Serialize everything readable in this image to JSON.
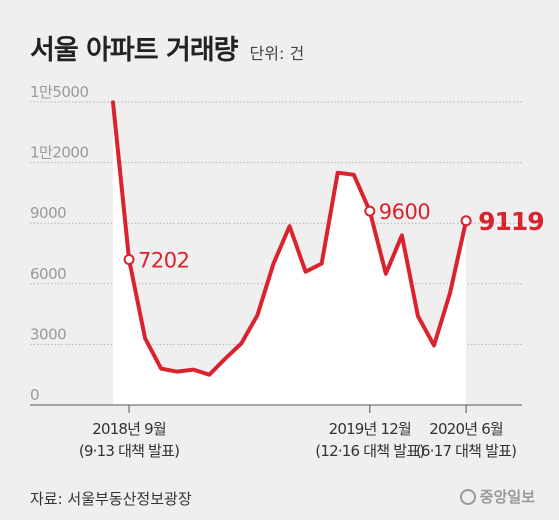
{
  "header": {
    "title": "서울 아파트 거래량",
    "unit": "단위: 건"
  },
  "source": "자료: 서울부동산정보광장",
  "logo": {
    "text": "중앙일보",
    "icon": "joongang-logo-icon"
  },
  "colors": {
    "line": "#d9232e",
    "area": "#ffffff",
    "grid": "#b5b5b5",
    "background": "#efefef"
  },
  "chart_data": {
    "type": "line",
    "title": "서울 아파트 거래량",
    "ylabel": "단위: 건",
    "ylim": [
      0,
      15000
    ],
    "yticks": [
      {
        "value": 0,
        "label": "0"
      },
      {
        "value": 3000,
        "label": "3000"
      },
      {
        "value": 6000,
        "label": "6000"
      },
      {
        "value": 9000,
        "label": "9000"
      },
      {
        "value": 12000,
        "label": "1만2000"
      },
      {
        "value": 15000,
        "label": "1만5000"
      }
    ],
    "x": [
      "2018-08",
      "2018-09",
      "2018-10",
      "2018-11",
      "2018-12",
      "2019-01",
      "2019-02",
      "2019-03",
      "2019-04",
      "2019-05",
      "2019-06",
      "2019-07",
      "2019-08",
      "2019-09",
      "2019-10",
      "2019-11",
      "2019-12",
      "2020-01",
      "2020-02",
      "2020-03",
      "2020-04",
      "2020-05",
      "2020-06"
    ],
    "series": [
      {
        "values": [
          14985,
          7202,
          3300,
          1800,
          1650,
          1750,
          1500,
          2300,
          3050,
          4450,
          7000,
          8850,
          6600,
          7000,
          11500,
          11400,
          9600,
          6500,
          8400,
          4400,
          2950,
          5550,
          9119
        ]
      }
    ],
    "xticks": [
      {
        "x": "2018-09",
        "label": "2018년 9월",
        "sublabel": "(9·13 대책 발표)"
      },
      {
        "x": "2019-12",
        "label": "2019년 12월",
        "sublabel": "(12·16 대책 발표)"
      },
      {
        "x": "2020-06",
        "label": "2020년 6월",
        "sublabel": "(6·17 대책 발표)"
      }
    ],
    "annotations": [
      {
        "x": "2018-09",
        "value": 7202,
        "label": "7202",
        "emphasis": false
      },
      {
        "x": "2019-12",
        "value": 9600,
        "label": "9600",
        "emphasis": false
      },
      {
        "x": "2020-06",
        "value": 9119,
        "label": "9119",
        "emphasis": true
      }
    ],
    "grid": true,
    "legend": "none"
  }
}
